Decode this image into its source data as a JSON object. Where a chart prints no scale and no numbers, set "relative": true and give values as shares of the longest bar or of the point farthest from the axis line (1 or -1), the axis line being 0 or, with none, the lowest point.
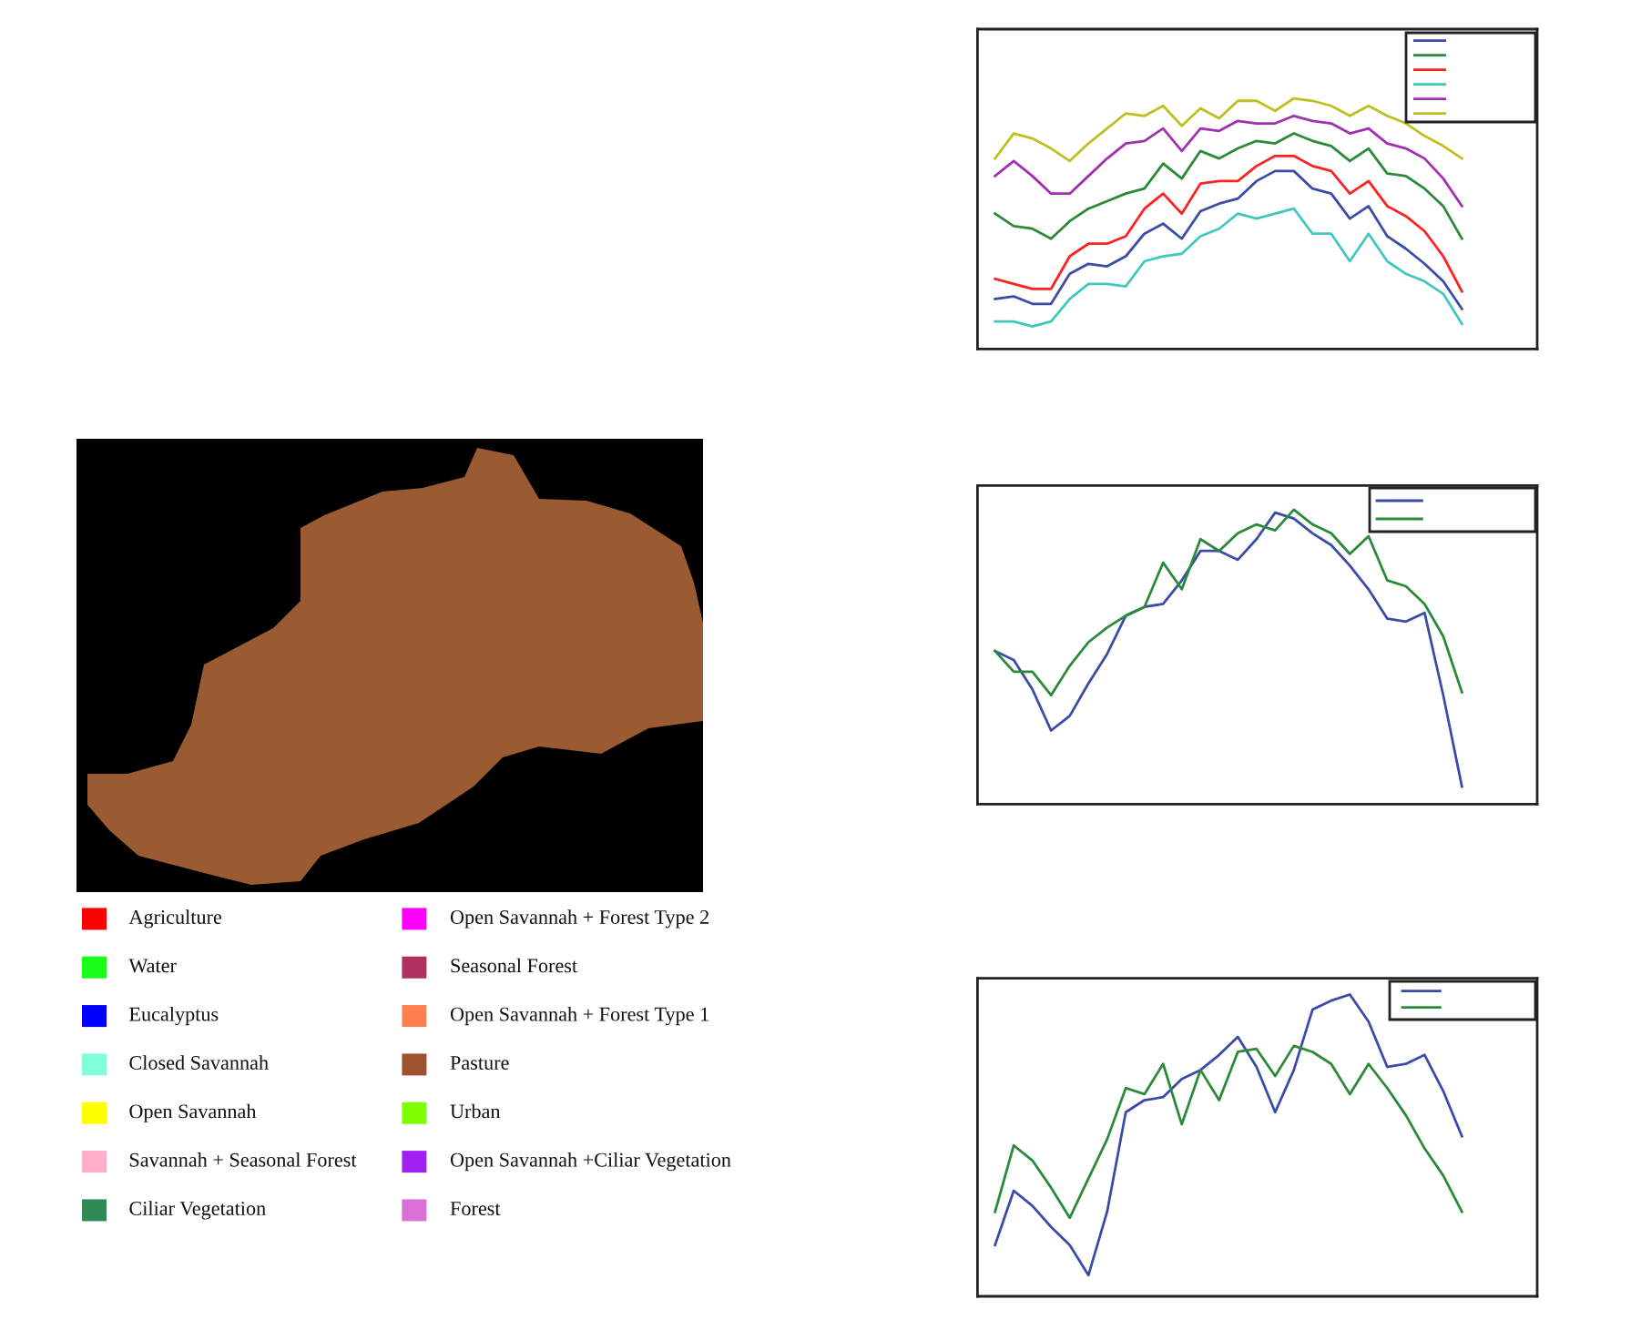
{
  "chart_data": [
    {
      "type": "other",
      "categories": [
        "Agriculture",
        "Water",
        "Eucalyptus",
        "Closed Savannah",
        "Open Savannah",
        "Savannah + Seasonal Forest",
        "Ciliar Vegetation",
        "Open Savannah + Forest Type 2",
        "Seasonal Forest",
        "Open Savannah + Forest Type 1",
        "Pasture",
        "Urban",
        "Open Savannah +Ciliar Vegetation",
        "Forest"
      ],
      "colors": [
        "#ff0000",
        "#19ff19",
        "#0000ff",
        "#80ffd8",
        "#ffff00",
        "#ffb0c8",
        "#2e8b57",
        "#ff00ff",
        "#b03060",
        "#ff7f50",
        "#a0522d",
        "#7fff00",
        "#a020f0",
        "#da70d6"
      ]
    },
    {
      "type": "line",
      "relative": true,
      "categories": [
        null,
        null,
        null,
        null,
        null,
        null,
        null,
        null,
        null,
        null,
        null,
        null,
        null,
        null,
        null,
        null,
        null,
        null,
        null,
        null,
        null,
        null,
        null,
        null,
        null,
        null
      ],
      "series": [
        {
          "color": "#3b4ba8",
          "values": [
            0.2,
            0.21,
            0.18,
            0.18,
            0.3,
            0.34,
            0.33,
            0.37,
            0.46,
            0.5,
            0.44,
            0.55,
            0.58,
            0.6,
            0.67,
            0.71,
            0.71,
            0.64,
            0.62,
            0.52,
            0.57,
            0.45,
            0.4,
            0.34,
            0.27,
            0.16
          ]
        },
        {
          "color": "#2a8a3a",
          "values": [
            0.54,
            0.49,
            0.48,
            0.44,
            0.51,
            0.56,
            0.59,
            0.62,
            0.64,
            0.74,
            0.68,
            0.79,
            0.76,
            0.8,
            0.83,
            0.82,
            0.86,
            0.83,
            0.81,
            0.75,
            0.8,
            0.7,
            0.69,
            0.64,
            0.57,
            0.44
          ]
        },
        {
          "color": "#ff2020",
          "values": [
            0.28,
            0.26,
            0.24,
            0.24,
            0.37,
            0.42,
            0.42,
            0.45,
            0.56,
            0.62,
            0.54,
            0.66,
            0.67,
            0.67,
            0.73,
            0.77,
            0.77,
            0.73,
            0.71,
            0.62,
            0.67,
            0.57,
            0.53,
            0.47,
            0.37,
            0.23
          ]
        },
        {
          "color": "#40c8c0",
          "values": [
            0.11,
            0.11,
            0.09,
            0.11,
            0.2,
            0.26,
            0.26,
            0.25,
            0.35,
            0.37,
            0.38,
            0.45,
            0.48,
            0.54,
            0.52,
            0.54,
            0.56,
            0.46,
            0.46,
            0.35,
            0.46,
            0.35,
            0.3,
            0.27,
            0.22,
            0.1
          ]
        },
        {
          "color": "#a030b0",
          "values": [
            0.69,
            0.75,
            0.69,
            0.62,
            0.62,
            0.69,
            0.76,
            0.82,
            0.83,
            0.88,
            0.79,
            0.88,
            0.87,
            0.91,
            0.9,
            0.9,
            0.93,
            0.91,
            0.9,
            0.86,
            0.88,
            0.82,
            0.8,
            0.76,
            0.68,
            0.57
          ]
        },
        {
          "color": "#bfbf20",
          "values": [
            0.76,
            0.86,
            0.84,
            0.8,
            0.75,
            0.82,
            0.88,
            0.94,
            0.93,
            0.97,
            0.89,
            0.96,
            0.92,
            0.99,
            0.99,
            0.95,
            1.0,
            0.99,
            0.97,
            0.93,
            0.97,
            0.93,
            0.9,
            0.85,
            0.81,
            0.76
          ]
        }
      ]
    },
    {
      "type": "line",
      "relative": true,
      "categories": [
        null,
        null,
        null,
        null,
        null,
        null,
        null,
        null,
        null,
        null,
        null,
        null,
        null,
        null,
        null,
        null,
        null,
        null,
        null,
        null,
        null,
        null,
        null,
        null,
        null,
        null
      ],
      "series": [
        {
          "color": "#3b4ba8",
          "values": [
            0.52,
            0.49,
            0.39,
            0.25,
            0.3,
            0.41,
            0.51,
            0.64,
            0.67,
            0.68,
            0.76,
            0.86,
            0.86,
            0.83,
            0.9,
            0.99,
            0.97,
            0.92,
            0.88,
            0.81,
            0.73,
            0.63,
            0.62,
            0.65,
            0.37,
            0.06
          ]
        },
        {
          "color": "#2a8a3a",
          "values": [
            0.52,
            0.45,
            0.45,
            0.37,
            0.47,
            0.55,
            0.6,
            0.64,
            0.67,
            0.82,
            0.73,
            0.9,
            0.86,
            0.92,
            0.95,
            0.93,
            1.0,
            0.95,
            0.92,
            0.85,
            0.91,
            0.76,
            0.74,
            0.68,
            0.57,
            0.38
          ]
        }
      ]
    },
    {
      "type": "line",
      "relative": true,
      "categories": [
        null,
        null,
        null,
        null,
        null,
        null,
        null,
        null,
        null,
        null,
        null,
        null,
        null,
        null,
        null,
        null,
        null,
        null,
        null,
        null,
        null,
        null,
        null,
        null,
        null,
        null
      ],
      "series": [
        {
          "color": "#3b4ba8",
          "values": [
            0.17,
            0.35,
            0.3,
            0.23,
            0.17,
            0.07,
            0.28,
            0.61,
            0.65,
            0.66,
            0.72,
            0.75,
            0.8,
            0.86,
            0.76,
            0.61,
            0.75,
            0.95,
            0.98,
            1.0,
            0.91,
            0.76,
            0.77,
            0.8,
            0.68,
            0.53
          ]
        },
        {
          "color": "#2a8a3a",
          "values": [
            0.28,
            0.5,
            0.45,
            0.36,
            0.26,
            0.39,
            0.52,
            0.69,
            0.67,
            0.77,
            0.57,
            0.75,
            0.65,
            0.81,
            0.82,
            0.73,
            0.83,
            0.81,
            0.77,
            0.67,
            0.77,
            0.69,
            0.6,
            0.49,
            0.4,
            0.28
          ]
        }
      ]
    }
  ]
}
